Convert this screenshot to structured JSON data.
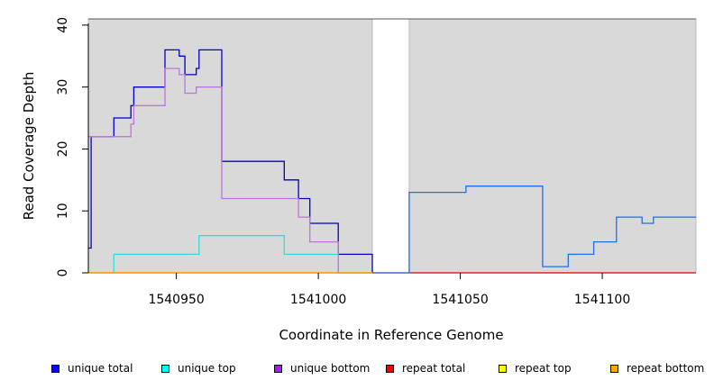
{
  "chart_data": {
    "type": "line",
    "xlabel": "Coordinate in Reference Genome",
    "ylabel": "Read Coverage Depth",
    "xlim": [
      1540919,
      1541133
    ],
    "ylim": [
      0,
      41
    ],
    "x_ticks": [
      1540950,
      1541000,
      1541050,
      1541100
    ],
    "x_tick_labels": [
      "1540950",
      "1541000",
      "1541050",
      "1541100"
    ],
    "y_ticks": [
      0,
      10,
      20,
      30,
      40
    ],
    "y_tick_labels": [
      "0",
      "10",
      "20",
      "30",
      "40"
    ],
    "shaded_regions": [
      [
        1540919,
        1541019
      ],
      [
        1541032,
        1541133
      ]
    ],
    "shade_color": "#d9d9d9",
    "legend_position": "bottom",
    "series": [
      {
        "name": "unique total",
        "color": "#0000cc",
        "points": [
          [
            1540919,
            4
          ],
          [
            1540920,
            4
          ],
          [
            1540920,
            22
          ],
          [
            1540928,
            22
          ],
          [
            1540928,
            25
          ],
          [
            1540934,
            25
          ],
          [
            1540934,
            27
          ],
          [
            1540935,
            27
          ],
          [
            1540935,
            30
          ],
          [
            1540946,
            30
          ],
          [
            1540946,
            36
          ],
          [
            1540951,
            36
          ],
          [
            1540951,
            35
          ],
          [
            1540953,
            35
          ],
          [
            1540953,
            32
          ],
          [
            1540957,
            32
          ],
          [
            1540957,
            33
          ],
          [
            1540958,
            33
          ],
          [
            1540958,
            36
          ],
          [
            1540966,
            36
          ],
          [
            1540966,
            18
          ],
          [
            1540988,
            18
          ],
          [
            1540988,
            15
          ],
          [
            1540993,
            15
          ],
          [
            1540993,
            12
          ],
          [
            1540997,
            12
          ],
          [
            1540997,
            8
          ],
          [
            1541007,
            8
          ],
          [
            1541007,
            3
          ],
          [
            1541019,
            3
          ],
          [
            1541019,
            0
          ]
        ]
      },
      {
        "name": "unique top",
        "color": "#33dddd",
        "points": [
          [
            1540919,
            0
          ],
          [
            1540928,
            0
          ],
          [
            1540928,
            3
          ],
          [
            1540958,
            3
          ],
          [
            1540958,
            6
          ],
          [
            1540988,
            6
          ],
          [
            1540988,
            3
          ],
          [
            1541007,
            3
          ],
          [
            1541007,
            0
          ],
          [
            1541019,
            0
          ]
        ]
      },
      {
        "name": "unique bottom",
        "color": "#bb77dd",
        "points": [
          [
            1540919,
            22
          ],
          [
            1540934,
            22
          ],
          [
            1540934,
            24
          ],
          [
            1540935,
            24
          ],
          [
            1540935,
            27
          ],
          [
            1540946,
            27
          ],
          [
            1540946,
            33
          ],
          [
            1540951,
            33
          ],
          [
            1540951,
            32
          ],
          [
            1540953,
            32
          ],
          [
            1540953,
            29
          ],
          [
            1540957,
            29
          ],
          [
            1540957,
            30
          ],
          [
            1540966,
            30
          ],
          [
            1540966,
            12
          ],
          [
            1540993,
            12
          ],
          [
            1540993,
            9
          ],
          [
            1540997,
            9
          ],
          [
            1540997,
            5
          ],
          [
            1541007,
            5
          ],
          [
            1541007,
            0
          ],
          [
            1541019,
            0
          ]
        ]
      },
      {
        "name": "repeat total",
        "color": "#dd0000",
        "points": [
          [
            1540919,
            0
          ],
          [
            1541133,
            0
          ]
        ]
      },
      {
        "name": "repeat top",
        "color": "#eeee00",
        "points": [
          [
            1540919,
            0
          ],
          [
            1541019,
            0
          ]
        ]
      },
      {
        "name": "repeat bottom",
        "color": "#ffa500",
        "points": [
          [
            1540919,
            0
          ],
          [
            1541019,
            0
          ]
        ]
      },
      {
        "name": "",
        "color": "#1e6fe8",
        "points": [
          [
            1541019,
            0
          ],
          [
            1541032,
            0
          ],
          [
            1541032,
            13
          ],
          [
            1541052,
            13
          ],
          [
            1541052,
            14
          ],
          [
            1541079,
            14
          ],
          [
            1541079,
            1
          ],
          [
            1541088,
            1
          ],
          [
            1541088,
            3
          ],
          [
            1541097,
            3
          ],
          [
            1541097,
            5
          ],
          [
            1541105,
            5
          ],
          [
            1541105,
            9
          ],
          [
            1541114,
            9
          ],
          [
            1541114,
            8
          ],
          [
            1541118,
            8
          ],
          [
            1541118,
            9
          ],
          [
            1541133,
            9
          ]
        ]
      }
    ]
  },
  "legend": [
    {
      "label": "unique total",
      "color": "#0000ff"
    },
    {
      "label": "unique top",
      "color": "#00ffff"
    },
    {
      "label": "unique bottom",
      "color": "#a020f0"
    },
    {
      "label": "repeat total",
      "color": "#ff0000"
    },
    {
      "label": "repeat top",
      "color": "#ffff00"
    },
    {
      "label": "repeat bottom",
      "color": "#ffa500"
    }
  ]
}
